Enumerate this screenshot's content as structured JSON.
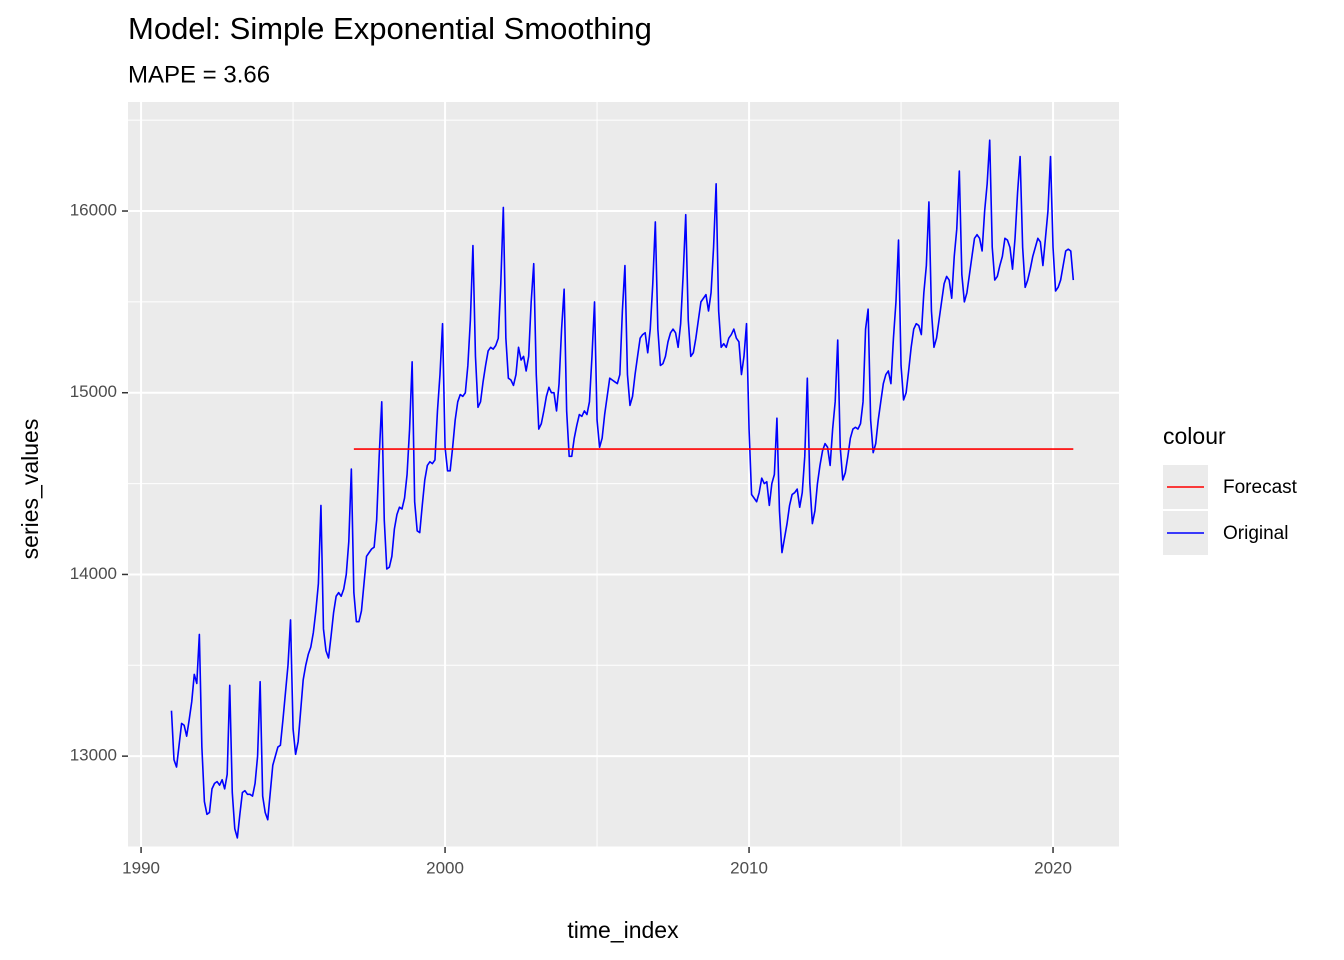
{
  "chart_data": {
    "type": "line",
    "title": "Model:  Simple Exponential Smoothing",
    "subtitle": "MAPE = 3.66",
    "x_label": "time_index",
    "y_label": "series_values",
    "legend_title": "colour",
    "legend_position": "right",
    "grid": true,
    "xlim": [
      1989.57,
      2022.17
    ],
    "ylim": [
      12500,
      16600
    ],
    "xticks": [
      1990,
      2000,
      2010,
      2020
    ],
    "yticks": [
      13000,
      14000,
      15000,
      16000
    ],
    "minor_xticks": [
      1995,
      2005,
      2015
    ],
    "minor_yticks": [
      12500,
      13500,
      14500,
      15500,
      16500
    ],
    "series": [
      {
        "name": "Forecast",
        "color": "#ff0000",
        "x": [
          1997,
          2020.667
        ],
        "values": [
          14690,
          14690
        ]
      },
      {
        "name": "Original",
        "color": "#0000ff",
        "x": [
          1991,
          1991.083,
          1991.167,
          1991.25,
          1991.333,
          1991.417,
          1991.5,
          1991.583,
          1991.667,
          1991.75,
          1991.833,
          1991.917,
          1992,
          1992.083,
          1992.167,
          1992.25,
          1992.333,
          1992.417,
          1992.5,
          1992.583,
          1992.667,
          1992.75,
          1992.833,
          1992.917,
          1993,
          1993.083,
          1993.167,
          1993.25,
          1993.333,
          1993.417,
          1993.5,
          1993.583,
          1993.667,
          1993.75,
          1993.833,
          1993.917,
          1994,
          1994.083,
          1994.167,
          1994.25,
          1994.333,
          1994.417,
          1994.5,
          1994.583,
          1994.667,
          1994.75,
          1994.833,
          1994.917,
          1995,
          1995.083,
          1995.167,
          1995.25,
          1995.333,
          1995.417,
          1995.5,
          1995.583,
          1995.667,
          1995.75,
          1995.833,
          1995.917,
          1996,
          1996.083,
          1996.167,
          1996.25,
          1996.333,
          1996.417,
          1996.5,
          1996.583,
          1996.667,
          1996.75,
          1996.833,
          1996.917,
          1997,
          1997.083,
          1997.167,
          1997.25,
          1997.333,
          1997.417,
          1997.5,
          1997.583,
          1997.667,
          1997.75,
          1997.833,
          1997.917,
          1998,
          1998.083,
          1998.167,
          1998.25,
          1998.333,
          1998.417,
          1998.5,
          1998.583,
          1998.667,
          1998.75,
          1998.833,
          1998.917,
          1999,
          1999.083,
          1999.167,
          1999.25,
          1999.333,
          1999.417,
          1999.5,
          1999.583,
          1999.667,
          1999.75,
          1999.833,
          1999.917,
          2000,
          2000.083,
          2000.167,
          2000.25,
          2000.333,
          2000.417,
          2000.5,
          2000.583,
          2000.667,
          2000.75,
          2000.833,
          2000.917,
          2001,
          2001.083,
          2001.167,
          2001.25,
          2001.333,
          2001.417,
          2001.5,
          2001.583,
          2001.667,
          2001.75,
          2001.833,
          2001.917,
          2002,
          2002.083,
          2002.167,
          2002.25,
          2002.333,
          2002.417,
          2002.5,
          2002.583,
          2002.667,
          2002.75,
          2002.833,
          2002.917,
          2003,
          2003.083,
          2003.167,
          2003.25,
          2003.333,
          2003.417,
          2003.5,
          2003.583,
          2003.667,
          2003.75,
          2003.833,
          2003.917,
          2004,
          2004.083,
          2004.167,
          2004.25,
          2004.333,
          2004.417,
          2004.5,
          2004.583,
          2004.667,
          2004.75,
          2004.833,
          2004.917,
          2005,
          2005.083,
          2005.167,
          2005.25,
          2005.333,
          2005.417,
          2005.5,
          2005.583,
          2005.667,
          2005.75,
          2005.833,
          2005.917,
          2006,
          2006.083,
          2006.167,
          2006.25,
          2006.333,
          2006.417,
          2006.5,
          2006.583,
          2006.667,
          2006.75,
          2006.833,
          2006.917,
          2007,
          2007.083,
          2007.167,
          2007.25,
          2007.333,
          2007.417,
          2007.5,
          2007.583,
          2007.667,
          2007.75,
          2007.833,
          2007.917,
          2008,
          2008.083,
          2008.167,
          2008.25,
          2008.333,
          2008.417,
          2008.5,
          2008.583,
          2008.667,
          2008.75,
          2008.833,
          2008.917,
          2009,
          2009.083,
          2009.167,
          2009.25,
          2009.333,
          2009.417,
          2009.5,
          2009.583,
          2009.667,
          2009.75,
          2009.833,
          2009.917,
          2010,
          2010.083,
          2010.167,
          2010.25,
          2010.333,
          2010.417,
          2010.5,
          2010.583,
          2010.667,
          2010.75,
          2010.833,
          2010.917,
          2011,
          2011.083,
          2011.167,
          2011.25,
          2011.333,
          2011.417,
          2011.5,
          2011.583,
          2011.667,
          2011.75,
          2011.833,
          2011.917,
          2012,
          2012.083,
          2012.167,
          2012.25,
          2012.333,
          2012.417,
          2012.5,
          2012.583,
          2012.667,
          2012.75,
          2012.833,
          2012.917,
          2013,
          2013.083,
          2013.167,
          2013.25,
          2013.333,
          2013.417,
          2013.5,
          2013.583,
          2013.667,
          2013.75,
          2013.833,
          2013.917,
          2014,
          2014.083,
          2014.167,
          2014.25,
          2014.333,
          2014.417,
          2014.5,
          2014.583,
          2014.667,
          2014.75,
          2014.833,
          2014.917,
          2015,
          2015.083,
          2015.167,
          2015.25,
          2015.333,
          2015.417,
          2015.5,
          2015.583,
          2015.667,
          2015.75,
          2015.833,
          2015.917,
          2016,
          2016.083,
          2016.167,
          2016.25,
          2016.333,
          2016.417,
          2016.5,
          2016.583,
          2016.667,
          2016.75,
          2016.833,
          2016.917,
          2017,
          2017.083,
          2017.167,
          2017.25,
          2017.333,
          2017.417,
          2017.5,
          2017.583,
          2017.667,
          2017.75,
          2017.833,
          2017.917,
          2018,
          2018.083,
          2018.167,
          2018.25,
          2018.333,
          2018.417,
          2018.5,
          2018.583,
          2018.667,
          2018.75,
          2018.833,
          2018.917,
          2019,
          2019.083,
          2019.167,
          2019.25,
          2019.333,
          2019.417,
          2019.5,
          2019.583,
          2019.667,
          2019.75,
          2019.833,
          2019.917,
          2020,
          2020.083,
          2020.167,
          2020.25,
          2020.333,
          2020.417,
          2020.5,
          2020.583,
          2020.667
        ],
        "values": [
          13250,
          12980,
          12940,
          13060,
          13180,
          13170,
          13110,
          13200,
          13300,
          13450,
          13400,
          13670,
          13050,
          12750,
          12680,
          12690,
          12820,
          12850,
          12860,
          12840,
          12870,
          12820,
          12900,
          13390,
          12800,
          12600,
          12550,
          12680,
          12800,
          12810,
          12790,
          12790,
          12780,
          12850,
          13000,
          13410,
          12780,
          12690,
          12650,
          12800,
          12950,
          13000,
          13050,
          13060,
          13200,
          13350,
          13500,
          13750,
          13150,
          13010,
          13080,
          13250,
          13420,
          13500,
          13560,
          13600,
          13680,
          13800,
          13950,
          14380,
          13700,
          13580,
          13540,
          13660,
          13790,
          13880,
          13900,
          13880,
          13920,
          14000,
          14180,
          14580,
          13900,
          13740,
          13740,
          13800,
          13950,
          14100,
          14120,
          14140,
          14150,
          14300,
          14650,
          14950,
          14300,
          14030,
          14040,
          14100,
          14250,
          14330,
          14370,
          14360,
          14420,
          14550,
          14800,
          15170,
          14400,
          14240,
          14230,
          14380,
          14520,
          14600,
          14620,
          14610,
          14630,
          14900,
          15100,
          15380,
          14700,
          14570,
          14570,
          14700,
          14850,
          14950,
          14990,
          14980,
          15000,
          15150,
          15400,
          15810,
          15200,
          14920,
          14950,
          15060,
          15150,
          15230,
          15250,
          15240,
          15260,
          15300,
          15600,
          16020,
          15300,
          15080,
          15070,
          15040,
          15100,
          15250,
          15180,
          15200,
          15120,
          15200,
          15500,
          15710,
          15100,
          14800,
          14830,
          14900,
          14980,
          15030,
          15000,
          15000,
          14900,
          15050,
          15350,
          15570,
          14900,
          14650,
          14650,
          14750,
          14820,
          14880,
          14870,
          14900,
          14880,
          14950,
          15200,
          15500,
          14850,
          14700,
          14750,
          14880,
          14980,
          15080,
          15070,
          15060,
          15050,
          15100,
          15450,
          15700,
          15100,
          14930,
          14980,
          15100,
          15200,
          15300,
          15320,
          15330,
          15220,
          15350,
          15600,
          15940,
          15350,
          15150,
          15160,
          15200,
          15280,
          15330,
          15350,
          15330,
          15250,
          15380,
          15650,
          15980,
          15400,
          15200,
          15220,
          15300,
          15400,
          15500,
          15520,
          15540,
          15450,
          15550,
          15800,
          16150,
          15450,
          15250,
          15270,
          15250,
          15300,
          15320,
          15350,
          15300,
          15280,
          15100,
          15200,
          15380,
          14800,
          14440,
          14420,
          14400,
          14450,
          14530,
          14500,
          14510,
          14380,
          14500,
          14550,
          14860,
          14350,
          14120,
          14200,
          14280,
          14380,
          14440,
          14450,
          14470,
          14370,
          14450,
          14650,
          15080,
          14500,
          14280,
          14350,
          14500,
          14600,
          14680,
          14720,
          14700,
          14600,
          14800,
          14950,
          15290,
          14700,
          14520,
          14560,
          14650,
          14750,
          14800,
          14810,
          14800,
          14830,
          14950,
          15350,
          15460,
          14850,
          14670,
          14720,
          14850,
          14950,
          15050,
          15100,
          15120,
          15050,
          15300,
          15500,
          15840,
          15150,
          14960,
          15000,
          15120,
          15250,
          15350,
          15380,
          15370,
          15320,
          15550,
          15700,
          16050,
          15450,
          15250,
          15300,
          15400,
          15500,
          15600,
          15640,
          15620,
          15520,
          15750,
          15900,
          16220,
          15650,
          15500,
          15550,
          15650,
          15750,
          15850,
          15870,
          15850,
          15780,
          16000,
          16150,
          16390,
          15800,
          15620,
          15640,
          15700,
          15750,
          15850,
          15840,
          15800,
          15680,
          15850,
          16100,
          16300,
          15800,
          15580,
          15620,
          15680,
          15750,
          15800,
          15850,
          15830,
          15700,
          15850,
          16000,
          16300,
          15800,
          15560,
          15580,
          15620,
          15700,
          15780,
          15790,
          15780,
          15620
        ]
      }
    ]
  }
}
